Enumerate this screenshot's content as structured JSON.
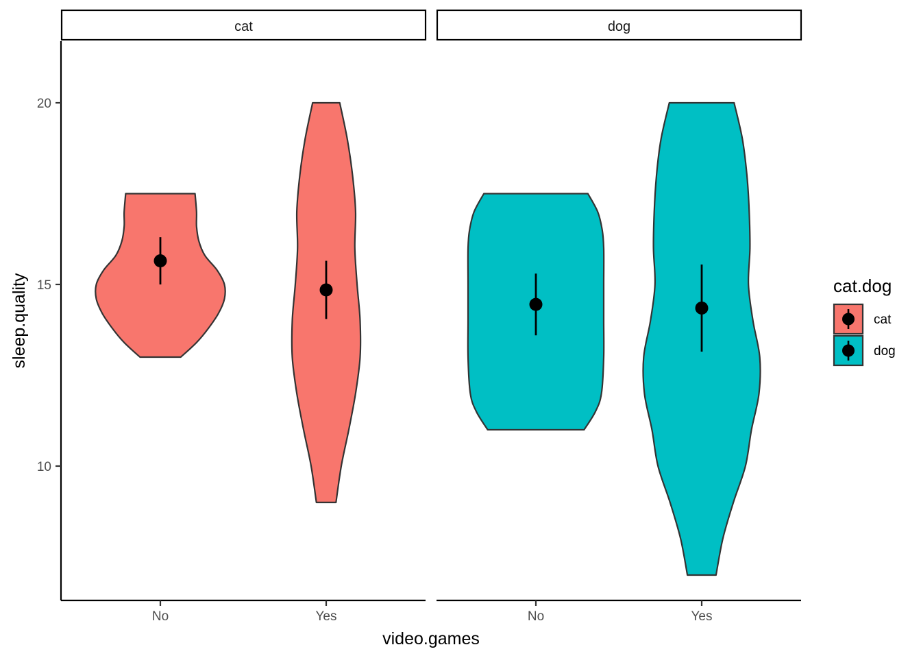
{
  "chart_data": {
    "type": "violin",
    "facet_variable": "cat.dog",
    "facets": [
      {
        "label": "cat",
        "fill": "#F8766D",
        "violins": [
          {
            "category": "No",
            "range": [
              13,
              18
            ],
            "mean": 15.65,
            "error": [
              15.0,
              16.3
            ],
            "profile": [
              [
                13.0,
                0.0
              ],
              [
                13.0,
                0.27
              ],
              [
                13.4,
                0.48
              ],
              [
                13.8,
                0.64
              ],
              [
                14.2,
                0.77
              ],
              [
                14.6,
                0.85
              ],
              [
                15.0,
                0.85
              ],
              [
                15.4,
                0.75
              ],
              [
                15.8,
                0.59
              ],
              [
                16.2,
                0.51
              ],
              [
                16.6,
                0.48
              ],
              [
                17.0,
                0.48
              ],
              [
                17.5,
                0.46
              ],
              [
                18.0,
                0.0
              ]
            ]
          },
          {
            "category": "Yes",
            "range": [
              9,
              21
            ],
            "mean": 14.85,
            "error": [
              14.05,
              15.65
            ],
            "profile": [
              [
                9.0,
                0.0
              ],
              [
                9.0,
                0.13
              ],
              [
                10.0,
                0.2
              ],
              [
                11.0,
                0.3
              ],
              [
                12.0,
                0.39
              ],
              [
                13.0,
                0.45
              ],
              [
                14.0,
                0.45
              ],
              [
                15.0,
                0.41
              ],
              [
                16.0,
                0.38
              ],
              [
                17.0,
                0.39
              ],
              [
                18.0,
                0.35
              ],
              [
                19.0,
                0.28
              ],
              [
                20.0,
                0.18
              ],
              [
                21.0,
                0.0
              ]
            ]
          }
        ]
      },
      {
        "label": "dog",
        "fill": "#00BFC4",
        "violins": [
          {
            "category": "No",
            "range": [
              11,
              18
            ],
            "mean": 14.45,
            "error": [
              13.6,
              15.3
            ],
            "profile": [
              [
                11.0,
                0.0
              ],
              [
                11.0,
                0.64
              ],
              [
                11.5,
                0.79
              ],
              [
                12.0,
                0.87
              ],
              [
                13.0,
                0.9
              ],
              [
                14.0,
                0.9
              ],
              [
                15.0,
                0.9
              ],
              [
                16.0,
                0.9
              ],
              [
                16.5,
                0.88
              ],
              [
                17.0,
                0.82
              ],
              [
                17.5,
                0.69
              ],
              [
                18.0,
                0.0
              ]
            ]
          },
          {
            "category": "Yes",
            "range": [
              7,
              20
            ],
            "mean": 14.35,
            "error": [
              13.15,
              15.55
            ],
            "profile": [
              [
                7.0,
                0.0
              ],
              [
                7.0,
                0.19
              ],
              [
                8.0,
                0.28
              ],
              [
                9.0,
                0.42
              ],
              [
                10.0,
                0.58
              ],
              [
                11.0,
                0.66
              ],
              [
                12.0,
                0.76
              ],
              [
                13.0,
                0.77
              ],
              [
                14.0,
                0.68
              ],
              [
                15.0,
                0.62
              ],
              [
                16.0,
                0.64
              ],
              [
                17.0,
                0.63
              ],
              [
                18.0,
                0.6
              ],
              [
                19.0,
                0.54
              ],
              [
                20.0,
                0.43
              ],
              [
                20.0,
                0.0
              ]
            ]
          }
        ]
      }
    ],
    "categories": [
      "No",
      "Yes"
    ],
    "xlabel": "video.games",
    "ylabel": "sleep.quality",
    "yticks": [
      10,
      15,
      20
    ],
    "ylim": [
      6.35,
      21.7
    ],
    "legend": {
      "title": "cat.dog",
      "position": "right",
      "items": [
        {
          "label": "cat",
          "fill": "#F8766D"
        },
        {
          "label": "dog",
          "fill": "#00BFC4"
        }
      ]
    },
    "grid": false
  }
}
